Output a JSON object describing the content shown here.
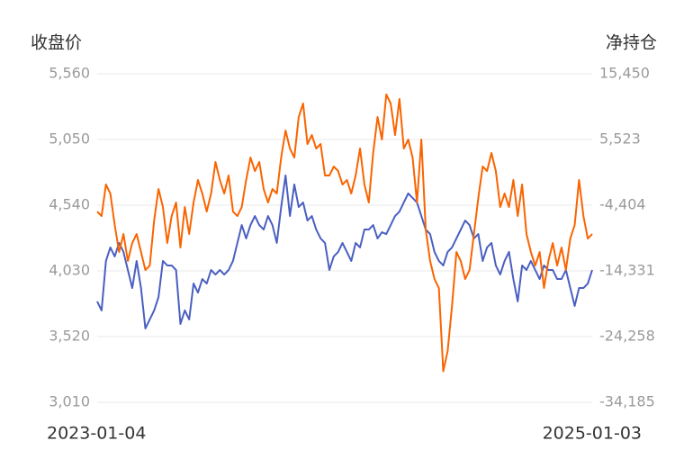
{
  "chart_data": {
    "type": "line",
    "y_label": "收盘价",
    "y2_label": "净持仓",
    "categories": [
      "2023-01-04",
      null,
      null,
      null,
      null,
      null,
      null,
      null,
      null,
      null,
      null,
      null,
      null,
      null,
      null,
      null,
      null,
      null,
      null,
      null,
      null,
      null,
      null,
      null,
      null,
      null,
      null,
      null,
      null,
      null,
      null,
      null,
      null,
      null,
      null,
      null,
      null,
      null,
      null,
      null,
      null,
      null,
      null,
      null,
      null,
      null,
      null,
      null,
      null,
      null,
      null,
      null,
      null,
      null,
      null,
      null,
      null,
      null,
      null,
      null,
      null,
      null,
      null,
      null,
      null,
      null,
      null,
      null,
      null,
      null,
      null,
      null,
      null,
      null,
      null,
      null,
      null,
      null,
      null,
      null,
      null,
      null,
      null,
      null,
      null,
      null,
      null,
      null,
      null,
      null,
      null,
      null,
      null,
      null,
      null,
      null,
      null,
      null,
      null,
      null,
      null,
      null,
      null,
      null,
      null,
      null,
      null,
      null,
      null,
      null,
      null,
      null,
      null,
      "2025-01-03"
    ],
    "series": [
      {
        "color": "#4a5fc1",
        "values": [
          3793,
          3723,
          4107,
          4212,
          4142,
          4247,
          4177,
          4037,
          3897,
          4107,
          3897,
          3583,
          3653,
          3723,
          3827,
          4107,
          4072,
          4072,
          4037,
          3618,
          3723,
          3653,
          3932,
          3862,
          3967,
          3932,
          4037,
          4002,
          4037,
          4002,
          4037,
          4107,
          4247,
          4386,
          4282,
          4386,
          4456,
          4386,
          4351,
          4456,
          4386,
          4247,
          4526,
          4771,
          4456,
          4701,
          4526,
          4561,
          4421,
          4456,
          4351,
          4282,
          4247,
          4037,
          4142,
          4177,
          4247,
          4177,
          4107,
          4247,
          4212,
          4351,
          4351,
          4386,
          4282,
          4330,
          4316,
          4386,
          4456,
          4491,
          4561,
          4631,
          4596,
          4561,
          4456,
          4351,
          4316,
          4177,
          4107,
          4072,
          4177,
          4212,
          4282,
          4351,
          4421,
          4386,
          4282,
          4316,
          4107,
          4212,
          4247,
          4072,
          4002,
          4107,
          4177,
          3967,
          3793,
          4072,
          4037,
          4107,
          4037,
          3967,
          4072,
          4037,
          4037,
          3967,
          3967,
          4037,
          3897,
          3758,
          3897,
          3897,
          3932,
          4037
        ]
      },
      {
        "color": "#fa6400",
        "axis": "y2",
        "values": [
          -5358,
          -6038,
          -1278,
          -2638,
          -7398,
          -11478,
          -8758,
          -12838,
          -10118,
          -8758,
          -11478,
          -14198,
          -13518,
          -6718,
          -1958,
          -4678,
          -10118,
          -6038,
          -3998,
          -10798,
          -4678,
          -8758,
          -3998,
          -598,
          -2638,
          -5358,
          -2638,
          2122,
          -598,
          -2638,
          82,
          -5358,
          -6038,
          -4678,
          -598,
          2802,
          762,
          2122,
          -1958,
          -3998,
          -1958,
          -2638,
          2802,
          6882,
          4162,
          2802,
          8922,
          10962,
          4842,
          6202,
          4162,
          4842,
          82,
          82,
          1442,
          762,
          -1278,
          -598,
          -2638,
          82,
          4162,
          -1278,
          -3998,
          3482,
          8922,
          5522,
          12322,
          10962,
          6202,
          11642,
          4162,
          5522,
          2802,
          -3998,
          5522,
          -8078,
          -12838,
          -15558,
          -16918,
          -29500,
          -26438,
          -19638,
          -11478,
          -12838,
          -15558,
          -14198,
          -8758,
          -3318,
          1442,
          762,
          3482,
          762,
          -4678,
          -2638,
          -4678,
          -598,
          -6038,
          -1278,
          -8758,
          -11478,
          -13518,
          -11478,
          -16918,
          -12838,
          -10118,
          -13518,
          -10798,
          -14198,
          -9438,
          -7398,
          -598,
          -6038,
          -9438,
          -8758
        ]
      }
    ],
    "ylim": [
      3010,
      5560
    ],
    "yticks": [
      {
        "value": 3010,
        "label": "3,010"
      },
      {
        "value": 3520,
        "label": "3,520"
      },
      {
        "value": 4030,
        "label": "4,030"
      },
      {
        "value": 4540,
        "label": "4,540"
      },
      {
        "value": 5050,
        "label": "5,050"
      },
      {
        "value": 5560,
        "label": "5,560"
      }
    ],
    "y2lim": [
      -34185,
      15450
    ],
    "y2ticks": [
      {
        "value": -34185,
        "label": "-34,185"
      },
      {
        "value": -24258,
        "label": "-24,258"
      },
      {
        "value": -14331,
        "label": "-14,331"
      },
      {
        "value": -4404,
        "label": "-4,404"
      },
      {
        "value": 5523,
        "label": "5,523"
      },
      {
        "value": 15450,
        "label": "15,450"
      }
    ],
    "grid": true
  }
}
